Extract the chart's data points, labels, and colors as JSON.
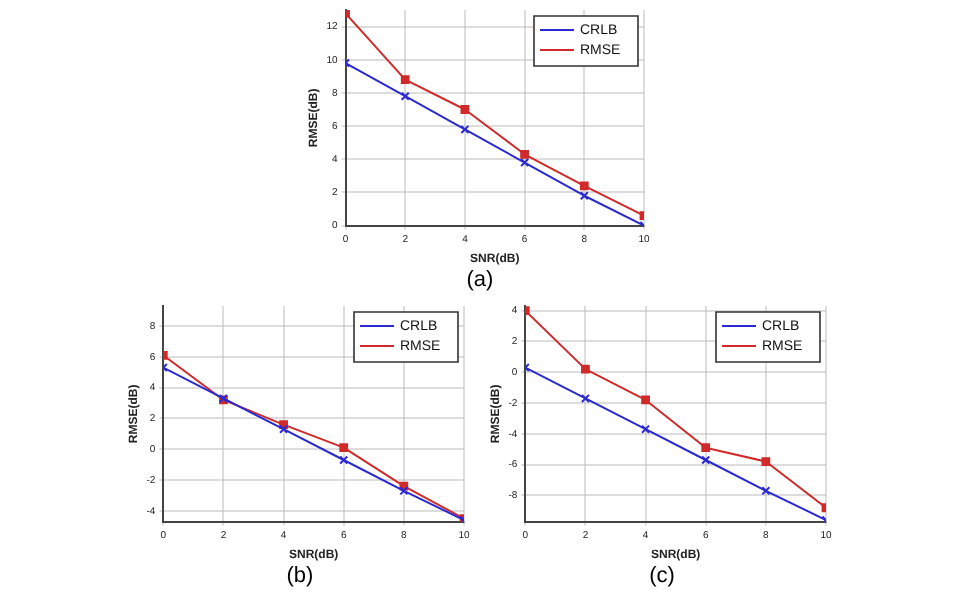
{
  "chart_data": [
    {
      "type": "line",
      "xlabel": "SNR(dB)",
      "ylabel": "RMSE(dB)",
      "x": [
        0,
        2,
        4,
        6,
        8,
        10
      ],
      "xlim": [
        0,
        10
      ],
      "xticks": [
        0,
        2,
        4,
        6,
        8,
        10
      ],
      "ylim": [
        0,
        13
      ],
      "yticks": [
        0,
        2,
        4,
        6,
        8,
        10,
        12
      ],
      "grid": true,
      "legend": "top right",
      "annotations": [
        "(a)"
      ],
      "series": [
        {
          "name": "CRLB",
          "color": "#2a2ad0",
          "marker": "cross",
          "values": [
            9.8,
            7.8,
            5.8,
            3.8,
            1.8,
            0
          ]
        },
        {
          "name": "RMSE",
          "color": "#d02a2a",
          "marker": "square",
          "values": [
            12.8,
            8.8,
            7.0,
            4.3,
            2.4,
            0.6
          ]
        }
      ]
    },
    {
      "type": "line",
      "xlabel": "SNR(dB)",
      "ylabel": "RMSE(dB)",
      "x": [
        0,
        2,
        4,
        6,
        8,
        10
      ],
      "xlim": [
        0,
        10
      ],
      "xticks": [
        0,
        2,
        4,
        6,
        8,
        10
      ],
      "ylim": [
        -4.7,
        9.3
      ],
      "yticks": [
        -4,
        -2,
        0,
        2,
        4,
        6,
        8
      ],
      "grid": true,
      "legend": "top right",
      "annotations": [
        "(b)"
      ],
      "series": [
        {
          "name": "CRLB",
          "color": "#2a2ad0",
          "marker": "cross",
          "values": [
            5.3,
            3.3,
            1.3,
            -0.7,
            -2.7,
            -4.6
          ]
        },
        {
          "name": "RMSE",
          "color": "#d02a2a",
          "marker": "square",
          "values": [
            6.1,
            3.2,
            1.6,
            0.1,
            -2.4,
            -4.5
          ]
        }
      ]
    },
    {
      "type": "line",
      "xlabel": "SNR(dB)",
      "ylabel": "RMSE(dB)",
      "x": [
        0,
        2,
        4,
        6,
        8,
        10
      ],
      "xlim": [
        0,
        10
      ],
      "xticks": [
        0,
        2,
        4,
        6,
        8,
        10
      ],
      "ylim": [
        -9.7,
        4.3
      ],
      "yticks": [
        -8,
        -6,
        -4,
        -2,
        0,
        2,
        4
      ],
      "grid": true,
      "legend": "top right",
      "annotations": [
        "(c)"
      ],
      "series": [
        {
          "name": "CRLB",
          "color": "#2a2ad0",
          "marker": "cross",
          "values": [
            0.3,
            -1.7,
            -3.7,
            -5.7,
            -7.7,
            -9.6
          ]
        },
        {
          "name": "RMSE",
          "color": "#d02a2a",
          "marker": "square",
          "values": [
            4.0,
            0.2,
            -1.8,
            -4.9,
            -5.8,
            -8.8
          ]
        }
      ]
    }
  ]
}
